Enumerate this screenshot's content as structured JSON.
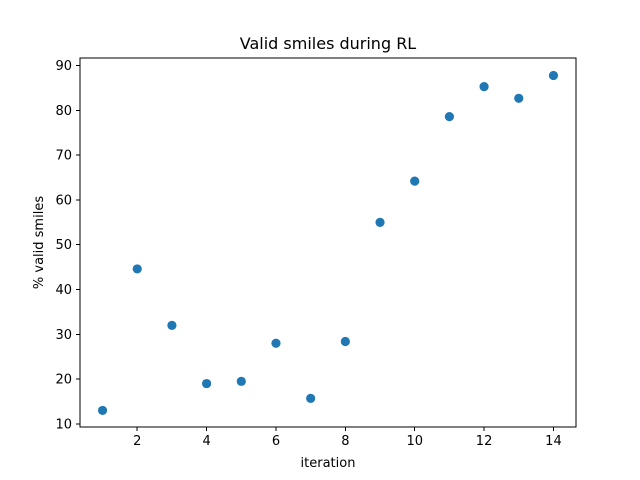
{
  "chart_data": {
    "type": "scatter",
    "title": "Valid smiles during RL",
    "xlabel": "iteration",
    "ylabel": "% valid smiles",
    "xlim": [
      0.35,
      14.65
    ],
    "ylim": [
      9.3,
      91.7
    ],
    "xticks": [
      2,
      4,
      6,
      8,
      10,
      12,
      14
    ],
    "yticks": [
      10,
      20,
      30,
      40,
      50,
      60,
      70,
      80,
      90
    ],
    "grid": false,
    "marker_color": "#1f77b4",
    "series": [
      {
        "x": [
          1,
          2,
          3,
          4,
          5,
          6,
          7,
          8,
          9,
          10,
          11,
          12,
          13,
          14
        ],
        "y": [
          13.0,
          44.6,
          32.0,
          19.0,
          19.5,
          28.0,
          15.7,
          28.4,
          55.0,
          64.2,
          78.6,
          85.3,
          82.7,
          87.8
        ]
      }
    ]
  }
}
